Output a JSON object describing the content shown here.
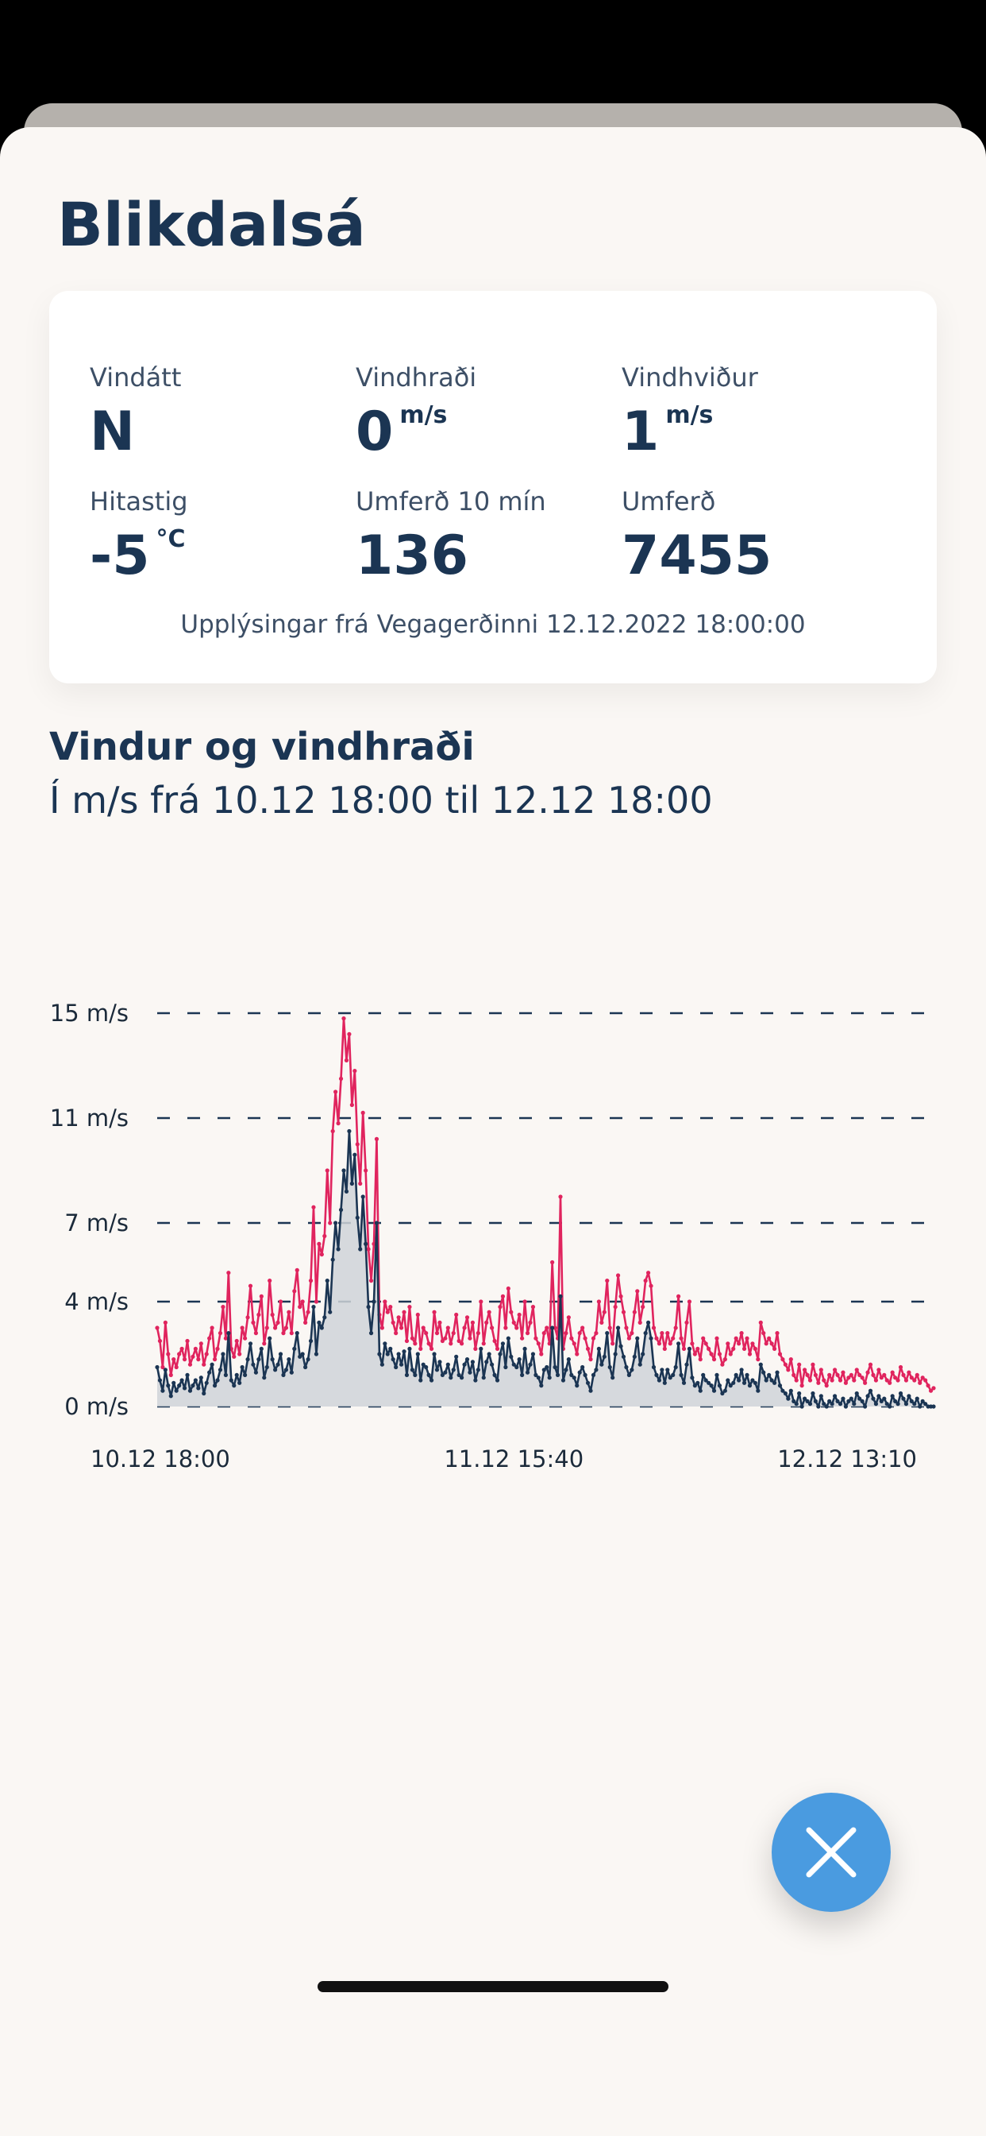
{
  "station": {
    "title": "Blikdalsá"
  },
  "stats": {
    "wind_direction": {
      "label": "Vindátt",
      "value": "N",
      "unit": ""
    },
    "wind_speed": {
      "label": "Vindhraði",
      "value": "0",
      "unit": "m/s"
    },
    "wind_gusts": {
      "label": "Vindhviður",
      "value": "1",
      "unit": "m/s"
    },
    "temperature": {
      "label": "Hitastig",
      "value": "-5",
      "unit": "°C"
    },
    "traffic_10min": {
      "label": "Umferð 10 mín",
      "value": "136",
      "unit": ""
    },
    "traffic_total": {
      "label": "Umferð",
      "value": "7455",
      "unit": ""
    }
  },
  "source": {
    "text": "Upplýsingar frá Vegagerðinni 12.12.2022 18:00:00"
  },
  "chart_section": {
    "title": "Vindur og vindhraði",
    "subtitle": "Í m/s frá 10.12 18:00 til 12.12 18:00"
  },
  "colors": {
    "primary": "#1b3553",
    "gust_line": "#e0245e",
    "wind_line": "#1b3553",
    "area_fill": "#cfd3d8",
    "close_button": "#4a9be0",
    "sheet_background": "#faf7f4"
  },
  "close_button": {
    "icon": "close-icon"
  },
  "chart_data": {
    "type": "line",
    "title": "Vindur og vindhraði",
    "subtitle": "Í m/s frá 10.12 18:00 til 12.12 18:00",
    "xlabel": "",
    "ylabel": "",
    "ylim": [
      0,
      15
    ],
    "y_ticks": [
      {
        "value": 0,
        "label": "0 m/s"
      },
      {
        "value": 4,
        "label": "4 m/s"
      },
      {
        "value": 7,
        "label": "7 m/s"
      },
      {
        "value": 11,
        "label": "11 m/s"
      },
      {
        "value": 15,
        "label": "15 m/s"
      }
    ],
    "x_ticks": [
      {
        "index": 0,
        "label": "10.12 18:00"
      },
      {
        "index": 130,
        "label": "11.12 15:40"
      },
      {
        "index": 259,
        "label": "12.12 13:10"
      }
    ],
    "grid": "dashed-horizontal",
    "series": [
      {
        "key": "gusts",
        "color": "#e0245e",
        "values": [
          3.0,
          2.5,
          1.5,
          3.2,
          2.0,
          1.2,
          1.8,
          1.5,
          2.0,
          2.2,
          1.8,
          2.5,
          1.6,
          1.9,
          2.2,
          1.8,
          2.4,
          1.6,
          2.0,
          2.6,
          3.0,
          1.8,
          2.2,
          2.8,
          3.8,
          2.6,
          5.1,
          2.2,
          1.9,
          2.5,
          2.0,
          3.0,
          2.6,
          3.4,
          4.6,
          3.2,
          2.8,
          3.5,
          4.2,
          2.4,
          3.0,
          4.8,
          3.5,
          3.0,
          3.2,
          4.0,
          2.8,
          3.0,
          3.6,
          2.8,
          4.4,
          5.2,
          3.8,
          4.0,
          3.2,
          3.6,
          4.8,
          7.6,
          4.0,
          6.2,
          5.8,
          6.5,
          9.0,
          7.0,
          10.5,
          12.0,
          10.8,
          12.5,
          14.8,
          13.2,
          14.2,
          11.5,
          12.8,
          10.0,
          8.5,
          11.2,
          9.0,
          6.0,
          4.8,
          6.2,
          10.2,
          3.5,
          3.0,
          4.0,
          3.6,
          3.8,
          3.2,
          2.8,
          3.4,
          3.0,
          3.6,
          2.5,
          3.8,
          2.6,
          2.4,
          3.5,
          2.2,
          3.0,
          2.8,
          2.4,
          2.2,
          3.6,
          2.8,
          3.2,
          2.5,
          2.6,
          3.0,
          2.4,
          2.8,
          3.5,
          2.5,
          2.4,
          3.0,
          3.4,
          2.6,
          3.2,
          2.2,
          2.8,
          4.0,
          2.4,
          3.2,
          3.6,
          3.0,
          2.5,
          2.2,
          3.8,
          4.2,
          3.0,
          4.5,
          3.6,
          3.2,
          3.0,
          3.5,
          2.6,
          4.0,
          2.8,
          3.2,
          3.8,
          2.6,
          2.4,
          2.0,
          2.8,
          3.0,
          2.4,
          5.5,
          3.0,
          2.6,
          8.0,
          2.2,
          2.8,
          3.4,
          2.6,
          2.4,
          2.0,
          2.8,
          3.0,
          2.6,
          2.2,
          1.8,
          2.6,
          2.8,
          4.0,
          3.2,
          3.6,
          4.8,
          3.0,
          2.4,
          3.8,
          5.0,
          4.2,
          3.6,
          3.0,
          2.6,
          2.8,
          3.6,
          4.4,
          3.2,
          3.8,
          4.8,
          5.1,
          4.6,
          3.0,
          2.6,
          2.4,
          2.8,
          2.2,
          2.8,
          2.4,
          2.6,
          3.0,
          4.2,
          2.6,
          2.2,
          3.2,
          4.0,
          2.4,
          2.0,
          2.2,
          1.8,
          2.6,
          2.4,
          2.2,
          2.0,
          1.8,
          2.6,
          2.0,
          1.6,
          1.8,
          2.4,
          2.0,
          2.2,
          2.6,
          2.4,
          2.8,
          2.2,
          2.6,
          2.0,
          2.4,
          2.2,
          1.8,
          3.2,
          2.8,
          2.4,
          2.6,
          2.4,
          2.2,
          2.8,
          2.0,
          1.8,
          1.6,
          1.4,
          1.8,
          1.2,
          1.0,
          1.6,
          0.8,
          1.4,
          1.2,
          1.0,
          1.6,
          1.2,
          0.9,
          1.4,
          1.0,
          0.8,
          1.2,
          1.0,
          1.4,
          1.2,
          1.0,
          1.3,
          0.9,
          1.1,
          1.2,
          1.0,
          1.4,
          1.2,
          1.1,
          0.9,
          1.3,
          1.6,
          1.2,
          1.0,
          1.4,
          1.1,
          1.2,
          1.0,
          0.9,
          1.3,
          1.1,
          1.0,
          1.5,
          1.2,
          1.0,
          1.3,
          1.1,
          1.0,
          1.2,
          0.9,
          1.1,
          1.0,
          0.8,
          0.6,
          0.7
        ]
      },
      {
        "key": "wind",
        "color": "#1b3553",
        "values": [
          1.5,
          1.0,
          0.6,
          1.4,
          0.8,
          0.4,
          0.9,
          0.6,
          0.8,
          1.0,
          0.7,
          1.2,
          0.6,
          0.8,
          1.0,
          0.7,
          1.1,
          0.5,
          0.9,
          1.3,
          1.6,
          0.8,
          1.0,
          1.4,
          2.0,
          1.2,
          2.8,
          1.0,
          0.8,
          1.2,
          0.9,
          1.5,
          1.2,
          1.8,
          2.4,
          1.6,
          1.3,
          1.8,
          2.2,
          1.1,
          1.5,
          2.6,
          1.8,
          1.4,
          1.6,
          2.0,
          1.2,
          1.4,
          1.8,
          1.3,
          2.2,
          2.8,
          1.9,
          2.0,
          1.5,
          1.8,
          2.5,
          3.8,
          2.0,
          3.2,
          3.0,
          3.4,
          4.8,
          3.6,
          5.6,
          7.0,
          6.0,
          7.5,
          9.0,
          8.2,
          10.5,
          8.5,
          9.6,
          7.2,
          6.0,
          8.0,
          6.2,
          3.8,
          2.8,
          4.0,
          7.0,
          2.0,
          1.6,
          2.4,
          2.0,
          2.2,
          1.8,
          1.5,
          2.0,
          1.6,
          2.1,
          1.2,
          2.2,
          1.4,
          1.2,
          2.0,
          1.0,
          1.6,
          1.5,
          1.2,
          1.0,
          2.0,
          1.4,
          1.7,
          1.2,
          1.3,
          1.6,
          1.1,
          1.4,
          1.9,
          1.2,
          1.1,
          1.6,
          1.8,
          1.3,
          1.7,
          1.0,
          1.4,
          2.2,
          1.1,
          1.7,
          2.0,
          1.6,
          1.2,
          1.0,
          2.0,
          2.4,
          1.5,
          2.6,
          1.9,
          1.6,
          1.5,
          1.8,
          1.2,
          2.2,
          1.3,
          1.6,
          2.0,
          1.2,
          1.1,
          0.8,
          1.4,
          1.5,
          1.1,
          3.0,
          1.5,
          1.2,
          4.2,
          1.0,
          1.4,
          1.8,
          1.2,
          1.1,
          0.8,
          1.3,
          1.5,
          1.2,
          0.9,
          0.6,
          1.2,
          1.4,
          2.2,
          1.6,
          1.9,
          2.8,
          1.5,
          1.1,
          2.0,
          3.0,
          2.3,
          1.9,
          1.5,
          1.2,
          1.4,
          1.9,
          2.6,
          1.6,
          2.0,
          2.8,
          3.2,
          2.6,
          1.5,
          1.2,
          1.0,
          1.4,
          0.9,
          1.4,
          1.1,
          1.2,
          1.5,
          2.4,
          1.2,
          0.9,
          1.6,
          2.2,
          1.1,
          0.8,
          0.9,
          0.6,
          1.2,
          1.0,
          0.9,
          0.8,
          0.6,
          1.2,
          0.8,
          0.5,
          0.6,
          1.0,
          0.8,
          0.9,
          1.2,
          1.0,
          1.4,
          0.9,
          1.2,
          0.8,
          1.0,
          0.9,
          0.6,
          1.6,
          1.3,
          1.0,
          1.2,
          1.0,
          0.9,
          1.3,
          0.8,
          0.6,
          0.5,
          0.3,
          0.6,
          0.2,
          0.1,
          0.5,
          0.0,
          0.3,
          0.2,
          0.1,
          0.5,
          0.2,
          0.0,
          0.4,
          0.1,
          0.0,
          0.2,
          0.1,
          0.4,
          0.2,
          0.1,
          0.3,
          0.0,
          0.2,
          0.3,
          0.1,
          0.5,
          0.3,
          0.2,
          0.0,
          0.4,
          0.6,
          0.3,
          0.1,
          0.4,
          0.2,
          0.3,
          0.1,
          0.0,
          0.4,
          0.2,
          0.1,
          0.5,
          0.3,
          0.1,
          0.4,
          0.2,
          0.1,
          0.3,
          0.0,
          0.2,
          0.1,
          0.0,
          0.0,
          0.0
        ]
      }
    ]
  }
}
